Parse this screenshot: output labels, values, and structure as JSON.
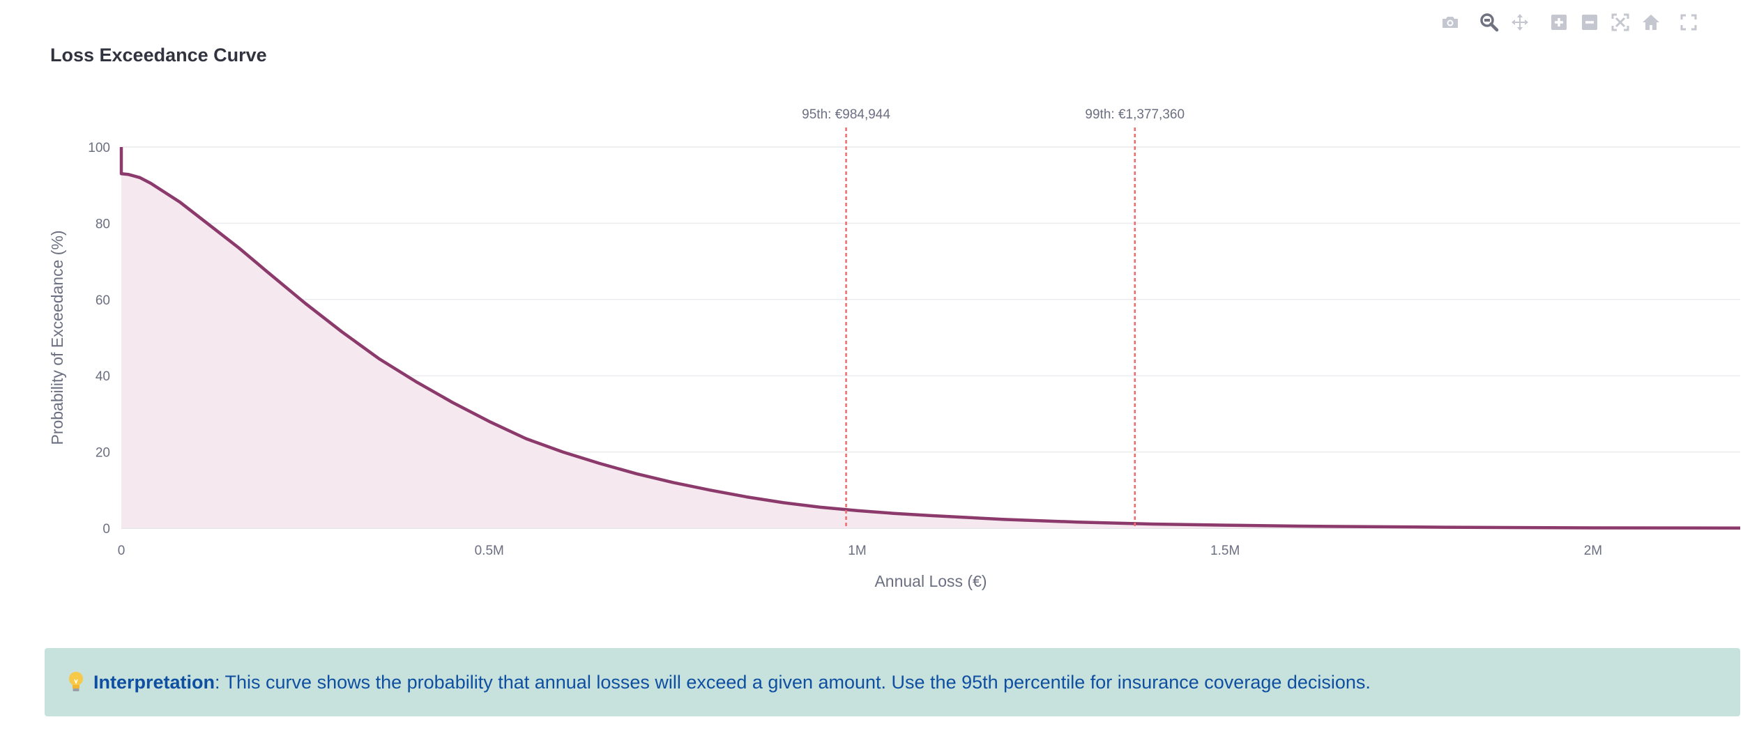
{
  "title": "Loss Exceedance Curve",
  "modebar": {
    "icons": [
      "camera-icon",
      "zoom-icon",
      "pan-icon",
      "zoom-in-icon",
      "zoom-out-icon",
      "autoscale-icon",
      "home-icon",
      "fullscreen-icon"
    ]
  },
  "chart_data": {
    "type": "area",
    "title": "Loss Exceedance Curve",
    "xlabel": "Annual Loss (€)",
    "ylabel": "Probability of Exceedance (%)",
    "xlim": [
      0,
      2200000
    ],
    "ylim": [
      0,
      100
    ],
    "x_ticks": [
      0,
      500000,
      1000000,
      1500000,
      2000000
    ],
    "x_tick_labels": [
      "0",
      "0.5M",
      "1M",
      "1.5M",
      "2M"
    ],
    "y_ticks": [
      0,
      20,
      40,
      60,
      80,
      100
    ],
    "y_tick_labels": [
      "0",
      "20",
      "40",
      "60",
      "80",
      "100"
    ],
    "grid": true,
    "line_color": "#8b3a6b",
    "fill_color": "#f5e8ef",
    "series": [
      {
        "x": [
          0,
          0,
          10000,
          25000,
          40000,
          60000,
          80000,
          100000,
          130000,
          160000,
          200000,
          250000,
          300000,
          350000,
          400000,
          450000,
          500000,
          550000,
          600000,
          650000,
          700000,
          750000,
          800000,
          850000,
          900000,
          950000,
          1000000,
          1050000,
          1100000,
          1200000,
          1300000,
          1400000,
          1500000,
          1600000,
          1800000,
          2000000,
          2200000
        ],
        "y": [
          100,
          93,
          92.8,
          92,
          90.5,
          88,
          85.5,
          82.5,
          78,
          73.5,
          67,
          59,
          51.5,
          44.5,
          38.5,
          33,
          28,
          23.5,
          20,
          17,
          14.3,
          12,
          10,
          8.2,
          6.7,
          5.5,
          4.6,
          3.9,
          3.3,
          2.3,
          1.6,
          1.1,
          0.8,
          0.55,
          0.25,
          0.1,
          0.05
        ]
      }
    ],
    "percentile_lines": [
      {
        "x": 984944,
        "label": "95th: €984,944",
        "color": "#f26b6b"
      },
      {
        "x": 1377360,
        "label": "99th: €1,377,360",
        "color": "#f26b6b"
      }
    ]
  },
  "info": {
    "strong": "Interpretation",
    "text": ": This curve shows the probability that annual losses will exceed a given amount. Use the 95th percentile for insurance coverage decisions."
  }
}
